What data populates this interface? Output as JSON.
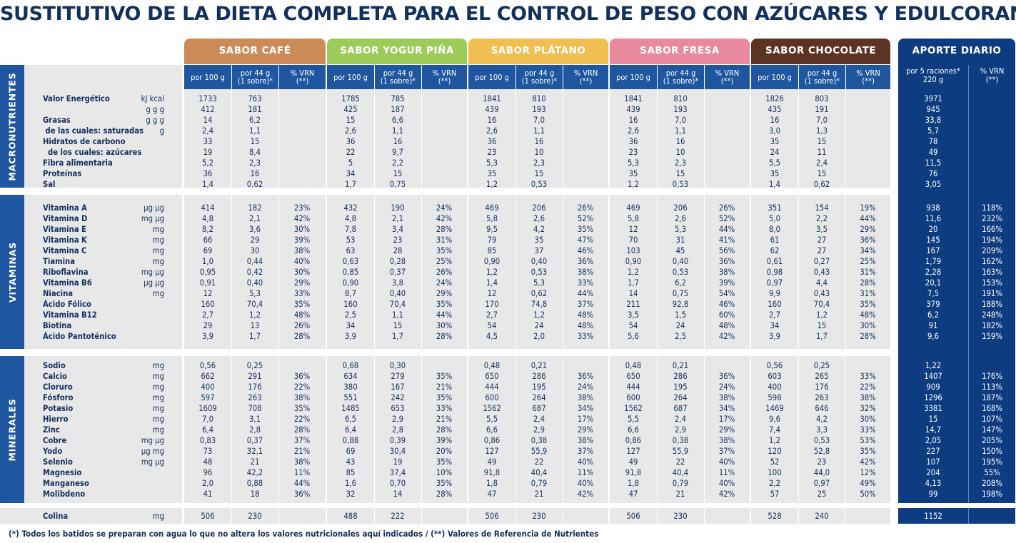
{
  "title": "SUSTITUTIVO DE LA DIETA COMPLETA PARA EL CONTROL DE PESO CON AZÚCARES Y EDULCORANTES",
  "colors": {
    "cafe": "#cd8b5a",
    "pina": "#9ccb5a",
    "platano": "#f1be52",
    "fresa": "#e8899d",
    "chocolate": "#5d3424",
    "aporte": "#0d3d80",
    "subheader": "#1f56a0"
  },
  "headers": {
    "flavors": [
      "SABOR CAFÉ",
      "SABOR YOGUR PIÑA",
      "SABOR PLÁTANO",
      "SABOR FRESA",
      "SABOR CHOCOLATE"
    ],
    "aporte": "APORTE DIARIO",
    "sub": [
      "por 100 g",
      "por 44 g\n(1 sobre)*",
      "% VRN\n(**)"
    ],
    "aporte_sub": [
      "por 5 raciones*\n220 g",
      "% VRN\n(**)"
    ]
  },
  "sections": {
    "macro": "MACRONUTRIENTES",
    "vit": "VITAMINAS",
    "min": "MINERALES"
  },
  "macro": {
    "labels": "Valor Energético\n\nGrasas\n de las cuales: saturadas\nHidratos de carbono\n  de los cuales: azúcares\nFibra alimentaria\nProteínas\nSal",
    "units": "kJ\nkcal\ng\ng\ng\ng\ng\ng\ng",
    "cols": [
      [
        "1733\n412\n14\n2,4\n33\n19\n5,2\n36\n1,4",
        "763\n181\n6,2\n1,1\n15\n8,4\n2,3\n16\n0,62",
        ""
      ],
      [
        "1785\n425\n15\n2,6\n36\n22\n5\n34\n1,7",
        "785\n187\n6,6\n1,1\n16\n9,7\n2,2\n15\n0,75",
        ""
      ],
      [
        "1841\n439\n16\n2,6\n36\n23\n5,3\n35\n1,2",
        "810\n193\n7,0\n1,1\n16\n10\n2,3\n15\n0,53",
        ""
      ],
      [
        "1841\n439\n16\n2,6\n36\n23\n5,3\n35\n1,2",
        "810\n193\n7,0\n1,1\n16\n10\n2,3\n15\n0,53",
        ""
      ],
      [
        "1826\n435\n16\n3,0\n35\n24\n5,5\n35\n1,4",
        "803\n191\n7,0\n1,3\n15\n11\n2,4\n15\n0,62",
        ""
      ]
    ],
    "aporte": [
      "3971\n945\n33,8\n5,7\n78\n49\n11,5\n76\n3,05",
      ""
    ]
  },
  "vit": {
    "labels": "Vitamina A\nVitamina D\nVitamina E\nVitamina K\nVitamina C\nTiamina\nRiboflavina\nVitamina B6\nNiacina\nÁcido Fólico\nVitamina B12\nBiotina\nÁcido Pantoténico",
    "units": "µg\nµg\nmg\nµg\nmg\nmg\nmg\nmg\nmg\nµg\nµg\nµg\nmg",
    "cols": [
      [
        "414\n4,8\n8,2\n66\n69\n1,0\n0,95\n0,91\n12\n160\n2,7\n29\n3,9",
        "182\n2,1\n3,6\n29\n30\n0,44\n0,42\n0,40\n5,3\n70,4\n1,2\n13\n1,7",
        "23%\n42%\n30%\n39%\n38%\n40%\n30%\n29%\n33%\n35%\n48%\n26%\n28%"
      ],
      [
        "432\n4,8\n7,8\n53\n63\n0,63\n0,85\n0,90\n8,7\n160\n2,5\n34\n3,9",
        "190\n2,1\n3,4\n23\n28\n0,28\n0,37\n3,8\n0,40\n70,4\n1,1\n15\n1,7",
        "24%\n42%\n28%\n31%\n35%\n25%\n26%\n24%\n29%\n35%\n44%\n30%\n28%"
      ],
      [
        "469\n5,8\n9,5\n79\n85\n0,90\n1,2\n1,4\n12\n170\n2,7\n54\n4,5",
        "206\n2,6\n4,2\n35\n37\n0,40\n0,53\n5,3\n0,62\n74,8\n1,2\n24\n2,0",
        "26%\n52%\n35%\n47%\n46%\n36%\n38%\n33%\n44%\n37%\n48%\n48%\n33%"
      ],
      [
        "469\n5,8\n12\n70\n103\n0,90\n1,2\n1,7\n14\n211\n3,5\n54\n5,6",
        "206\n2,6\n5,3\n31\n45\n0,40\n0,53\n6,2\n0,75\n92,8\n1,5\n24\n2,5",
        "26%\n52%\n44%\n41%\n56%\n36%\n38%\n39%\n54%\n46%\n60%\n48%\n42%"
      ],
      [
        "351\n5,0\n8,0\n61\n62\n0,61\n0,98\n0,97\n9,9\n160\n2,7\n34\n3,9",
        "154\n2,2\n3,5\n27\n27\n0,27\n0,43\n4,4\n0,43\n70,4\n1,2\n15\n1,7",
        "19%\n44%\n29%\n36%\n34%\n25%\n31%\n28%\n31%\n35%\n48%\n30%\n28%"
      ]
    ],
    "aporte": [
      "938\n11,6\n20\n145\n167\n1,79\n2,28\n20,1\n7,5\n379\n6,2\n91\n9,6",
      "118%\n232%\n166%\n194%\n209%\n162%\n163%\n153%\n191%\n188%\n248%\n182%\n159%"
    ]
  },
  "min": {
    "labels": "Sodio\nCalcio\nCloruro\nFósforo\nPotasio\nHierro\nZinc\nCobre\nYodo\nSelenio\nMagnesio\nManganeso\nMolibdeno",
    "units": "mg\nmg\nmg\nmg\nmg\nmg\nmg\nmg\nµg\nµg\nmg\nmg\nµg",
    "cols": [
      [
        "0,56\n662\n400\n597\n1609\n7,0\n6,4\n0,83\n73\n48\n96\n2,0\n41",
        "0,25\n291\n176\n263\n708\n3,1\n2,8\n0,37\n32,1\n21\n42,2\n0,88\n18",
        "\n36%\n22%\n38%\n35%\n22%\n28%\n37%\n21%\n38%\n11%\n44%\n36%"
      ],
      [
        "0,68\n634\n380\n551\n1485\n6,5\n6,4\n0,88\n69\n43\n85\n1,6\n32",
        "0,30\n279\n167\n242\n653\n2,9\n2,8\n0,39\n30,4\n19\n37,4\n0,70\n14",
        "\n35%\n21%\n35%\n33%\n21%\n28%\n39%\n20%\n35%\n10%\n35%\n28%"
      ],
      [
        "0,48\n650\n444\n600\n1562\n5,5\n6,6\n0,86\n127\n49\n91,8\n1,8\n47",
        "0,21\n286\n195\n264\n687\n2,4\n2,9\n0,38\n55,9\n22\n40,4\n0,79\n21",
        "\n36%\n24%\n38%\n34%\n17%\n29%\n38%\n37%\n40%\n11%\n40%\n42%"
      ],
      [
        "0,48\n650\n444\n600\n1562\n5,5\n6,6\n0,86\n127\n49\n91,8\n1,8\n47",
        "0,21\n286\n195\n264\n687\n2,4\n2,9\n0,38\n55,9\n22\n40,4\n0,79\n21",
        "\n36%\n24%\n38%\n34%\n17%\n29%\n38%\n37%\n40%\n11%\n40%\n42%"
      ],
      [
        "0,56\n603\n400\n598\n1469\n9,6\n7,4\n1,2\n120\n52\n100\n2,2\n57",
        "0,25\n265\n176\n263\n646\n4,2\n3,3\n0,53\n52,8\n23\n44,0\n0,97\n25",
        "\n33%\n22%\n38%\n32%\n30%\n33%\n53%\n35%\n42%\n12%\n49%\n50%"
      ]
    ],
    "aporte": [
      "1,22\n1407\n909\n1296\n3381\n15\n14,7\n2,05\n227\n107\n204\n4,13\n99",
      "\n176%\n113%\n187%\n168%\n107%\n147%\n205%\n150%\n195%\n55%\n208%\n198%"
    ]
  },
  "colina": {
    "label": "Colina",
    "unit": "mg",
    "cols": [
      [
        "506",
        "230",
        ""
      ],
      [
        "488",
        "222",
        ""
      ],
      [
        "506",
        "230",
        ""
      ],
      [
        "506",
        "230",
        ""
      ],
      [
        "528",
        "240",
        ""
      ]
    ],
    "aporte": [
      "1152",
      ""
    ]
  },
  "footnote": "(*) Todos los batidos se preparan con agua lo que no altera los valores nutricionales aquí indicados / (**) Valores de Referencia de Nutrientes"
}
